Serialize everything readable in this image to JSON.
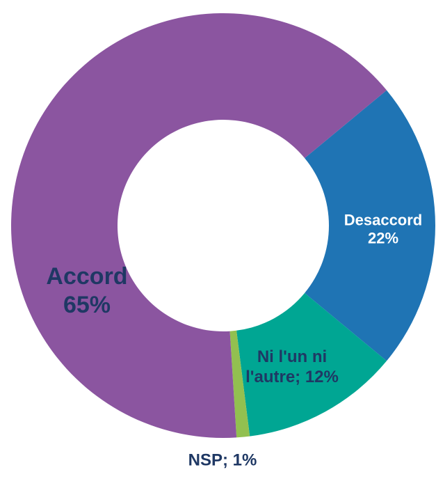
{
  "chart_data": {
    "type": "donut",
    "categories": [
      "Desaccord",
      "Ni l'un ni l'autre",
      "NSP",
      "Accord"
    ],
    "values": [
      22,
      12,
      1,
      65
    ],
    "value_labels": [
      "Desaccord 22%",
      "Ni l'un ni l'autre; 12%",
      "NSP; 1%",
      "Accord 65%"
    ],
    "colors": [
      "#1f74b4",
      "#00a693",
      "#92c050",
      "#8b55a0"
    ],
    "label_colors": [
      "#ffffff",
      "#1f3864",
      "#1f3864",
      "#1f3864"
    ]
  }
}
